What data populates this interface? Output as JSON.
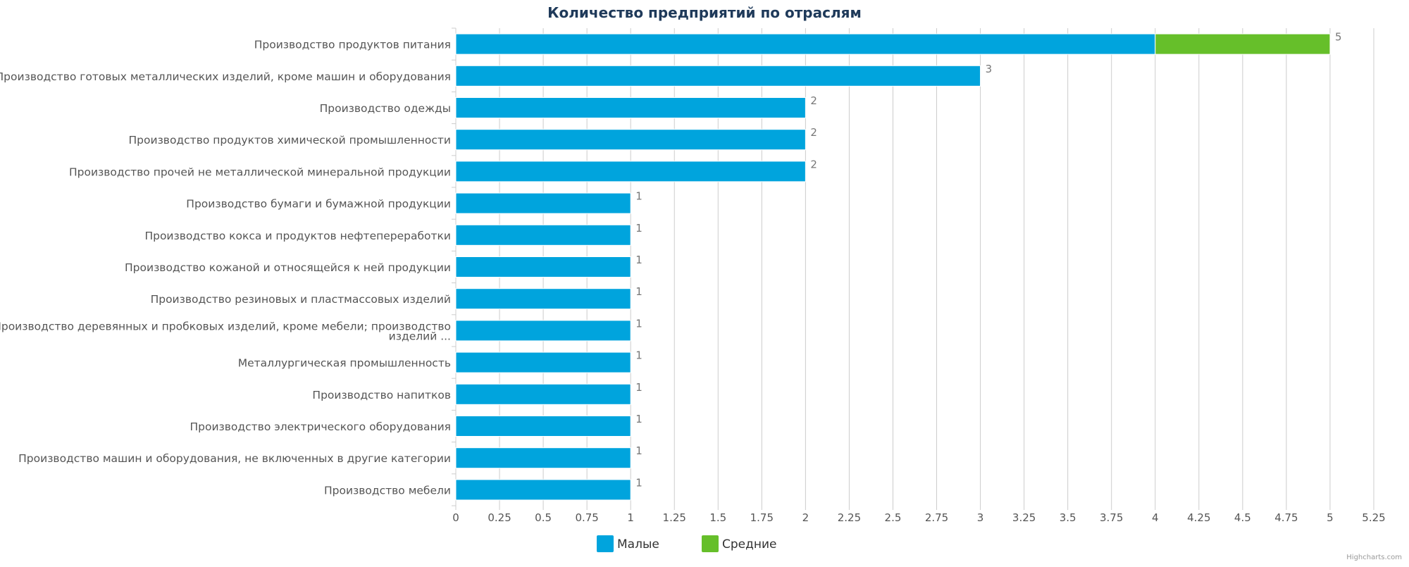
{
  "chart_data": {
    "type": "bar",
    "orientation": "horizontal",
    "stacked": true,
    "title": "Количество предприятий по отраслям",
    "categories": [
      [
        "Производство продуктов питания"
      ],
      [
        "Производство готовых металлических изделий, кроме машин и оборудования"
      ],
      [
        "Производство одежды"
      ],
      [
        "Производство продуктов химической промышленности"
      ],
      [
        "Производство прочей не металлической минеральной продукции"
      ],
      [
        "Производство бумаги и бумажной продукции"
      ],
      [
        "Производство кокса и продуктов нефтепереработки"
      ],
      [
        "Производство кожаной и относящейся к ней продукции"
      ],
      [
        "Производство резиновых и пластмассовых изделий"
      ],
      [
        "Производство деревянных и пробковых изделий, кроме мебели; производство",
        "изделий ..."
      ],
      [
        "Металлургическая промышленность"
      ],
      [
        "Производство напитков"
      ],
      [
        "Производство электрического оборудования"
      ],
      [
        "Производство машин и оборудования, не включенных в другие категории"
      ],
      [
        "Производство мебели"
      ]
    ],
    "series": [
      {
        "name": "Малые",
        "color": "#00a4dd",
        "values": [
          4,
          3,
          2,
          2,
          2,
          1,
          1,
          1,
          1,
          1,
          1,
          1,
          1,
          1,
          1
        ]
      },
      {
        "name": "Средние",
        "color": "#66bf2a",
        "values": [
          1,
          0,
          0,
          0,
          0,
          0,
          0,
          0,
          0,
          0,
          0,
          0,
          0,
          0,
          0
        ]
      }
    ],
    "totals": [
      5,
      3,
      2,
      2,
      2,
      1,
      1,
      1,
      1,
      1,
      1,
      1,
      1,
      1,
      1
    ],
    "xlim": [
      0,
      5.25
    ],
    "ticks": [
      "0",
      "0.25",
      "0.5",
      "0.75",
      "1",
      "1.25",
      "1.5",
      "1.75",
      "2",
      "2.25",
      "2.5",
      "2.75",
      "3",
      "3.25",
      "3.5",
      "3.75",
      "4",
      "4.25",
      "4.5",
      "4.75",
      "5",
      "5.25"
    ],
    "grid": true,
    "legend_position": "bottom"
  },
  "credits": "Highcharts.com"
}
